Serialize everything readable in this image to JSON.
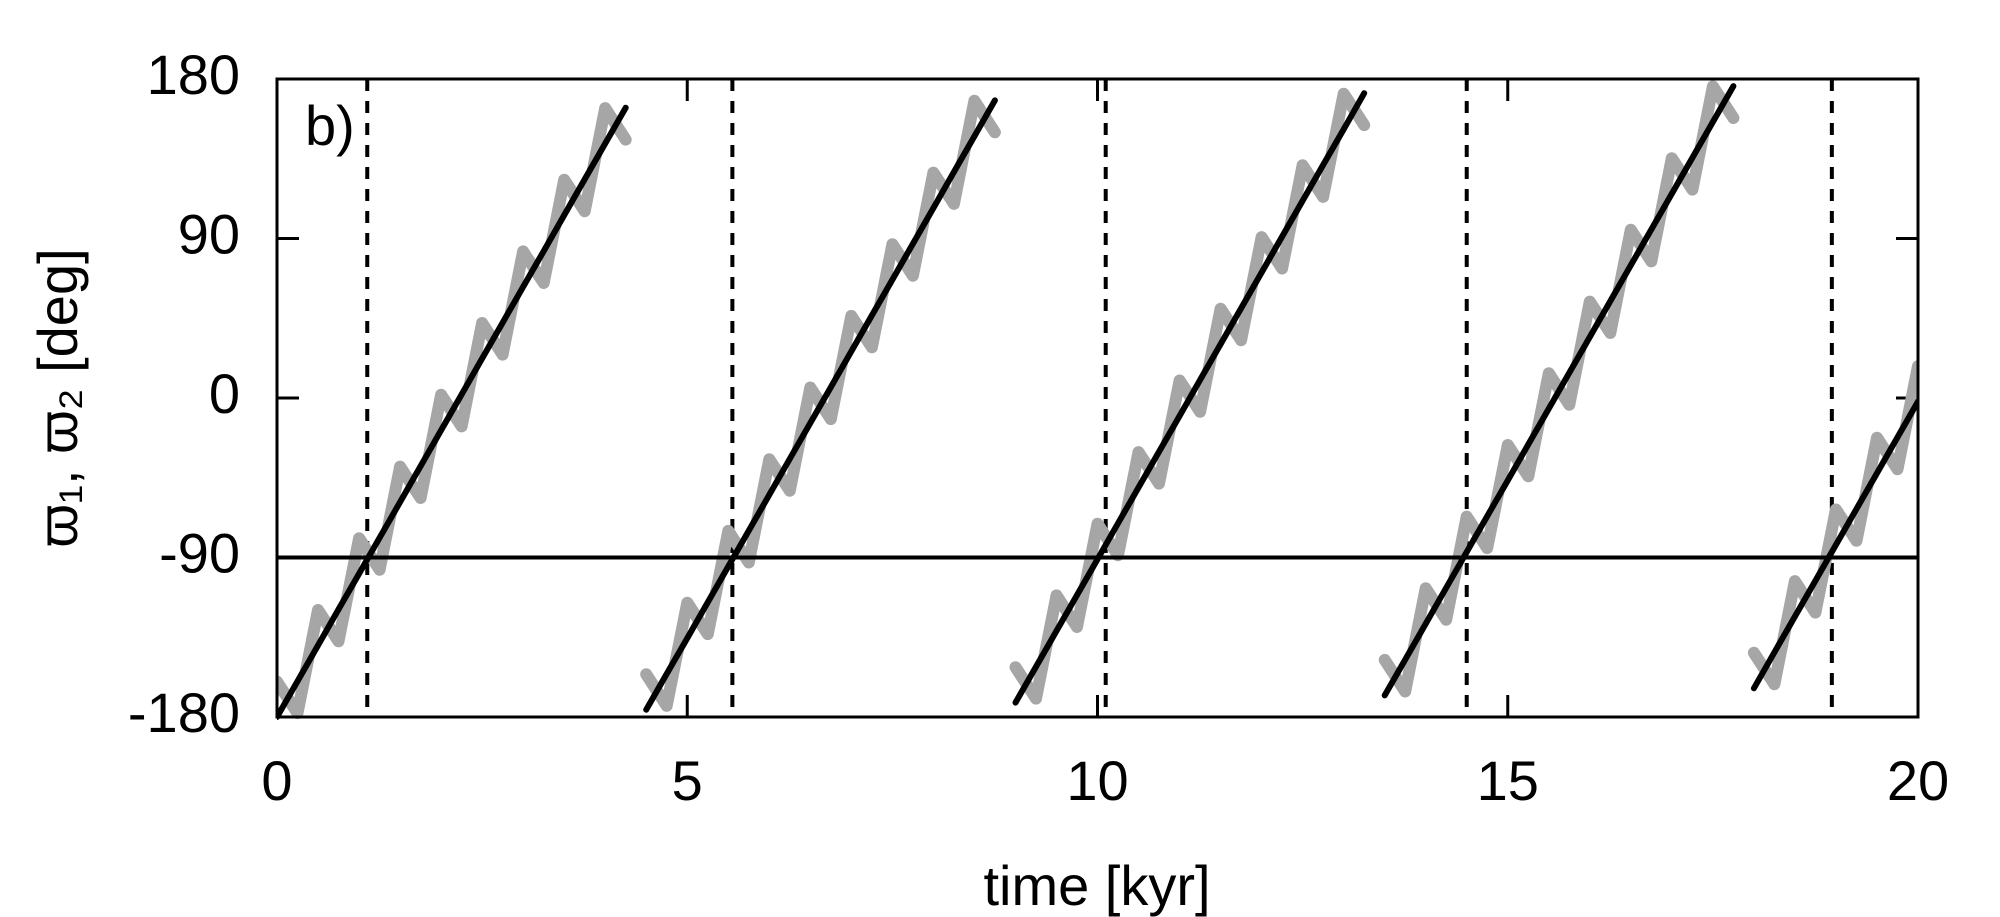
{
  "chart_data": {
    "type": "line",
    "x_label": "time [kyr]",
    "y_label": "ϖ₁, ϖ₂ [deg]",
    "annotation": "b)",
    "xlim": [
      0,
      20
    ],
    "xticks": [
      0,
      5,
      10,
      15,
      20
    ],
    "ylim": [
      -180,
      180
    ],
    "yticks": [
      -180,
      -90,
      0,
      90,
      180
    ],
    "hlines": [
      -90
    ],
    "vlines": [
      1.1,
      5.55,
      10.1,
      14.5,
      18.95
    ],
    "x": [
      0,
      0.25,
      0.5,
      0.75,
      1,
      1.25,
      1.5,
      1.75,
      2,
      2.25,
      2.5,
      2.75,
      3,
      3.25,
      3.5,
      3.75,
      4,
      4.25,
      4.45,
      4.5,
      4.75,
      5,
      5.25,
      5.5,
      5.75,
      6,
      6.25,
      6.5,
      6.75,
      7,
      7.25,
      7.5,
      7.75,
      8,
      8.25,
      8.5,
      8.75,
      8.9,
      9,
      9.25,
      9.5,
      9.75,
      10,
      10.25,
      10.5,
      10.75,
      11,
      11.25,
      11.5,
      11.75,
      12,
      12.25,
      12.5,
      12.75,
      13,
      13.25,
      13.35,
      13.5,
      13.75,
      14,
      14.25,
      14.5,
      14.75,
      15,
      15.25,
      15.5,
      15.75,
      16,
      16.25,
      16.5,
      16.75,
      17,
      17.25,
      17.5,
      17.75,
      17.8,
      18,
      18.25,
      18.5,
      18.75,
      19,
      19.25,
      19.5,
      19.75,
      20
    ],
    "series": [
      {
        "color": "#a6a6a6",
        "values": [
          -160,
          -177.8,
          -119.6,
          -137.3,
          -79.1,
          -96.9,
          -38.7,
          -56.4,
          1.8,
          -16.0,
          42.3,
          24.5,
          82.7,
          64.9,
          123.2,
          105.4,
          163.6,
          145.8,
          null,
          -155.9,
          -173.7,
          -115.5,
          -133.2,
          -75.0,
          -92.8,
          -34.6,
          -52.3,
          5.9,
          -11.9,
          46.3,
          28.6,
          86.8,
          69.0,
          127.2,
          109.5,
          167.7,
          149.9,
          null,
          -151.9,
          -169.6,
          -111.4,
          -129.2,
          -71.0,
          -88.7,
          -30.5,
          -48.3,
          9.9,
          -7.8,
          50.4,
          32.6,
          90.8,
          73.1,
          131.3,
          113.5,
          171.7,
          154.0,
          null,
          -147.8,
          -165.6,
          -107.4,
          -125.1,
          -66.9,
          -84.7,
          -26.5,
          -44.2,
          14.0,
          -3.8,
          54.4,
          36.7,
          94.9,
          77.1,
          135.3,
          117.6,
          175.8,
          158.0,
          null,
          -143.8,
          -161.5,
          -103.3,
          -121.1,
          -62.9,
          -80.6,
          -22.4,
          -40.2,
          18.0
        ]
      },
      {
        "color": "#000000",
        "values": [
          -180,
          -159.8,
          -139.6,
          -119.3,
          -99.1,
          -78.9,
          -58.7,
          -38.4,
          -18.2,
          2.0,
          22.3,
          42.5,
          62.7,
          82.9,
          103.2,
          123.4,
          143.6,
          163.8,
          null,
          -175.9,
          -155.7,
          -135.5,
          -115.2,
          -95.0,
          -74.8,
          -54.6,
          -34.3,
          -14.1,
          6.1,
          26.3,
          46.6,
          66.8,
          87.0,
          107.2,
          127.5,
          147.7,
          167.9,
          null,
          -171.9,
          -151.6,
          -131.4,
          -111.2,
          -91.0,
          -70.7,
          -50.5,
          -30.3,
          -10.1,
          10.2,
          30.4,
          50.6,
          70.8,
          91.1,
          111.3,
          131.5,
          151.7,
          172.0,
          null,
          -167.8,
          -147.6,
          -127.4,
          -107.1,
          -86.9,
          -66.7,
          -46.5,
          -26.2,
          -6.0,
          14.2,
          34.4,
          54.7,
          74.9,
          95.1,
          115.3,
          135.6,
          155.8,
          176.0,
          null,
          -163.8,
          -143.5,
          -123.3,
          -103.1,
          -82.9,
          -62.6,
          -42.4,
          -22.2,
          -2.0
        ]
      }
    ]
  }
}
